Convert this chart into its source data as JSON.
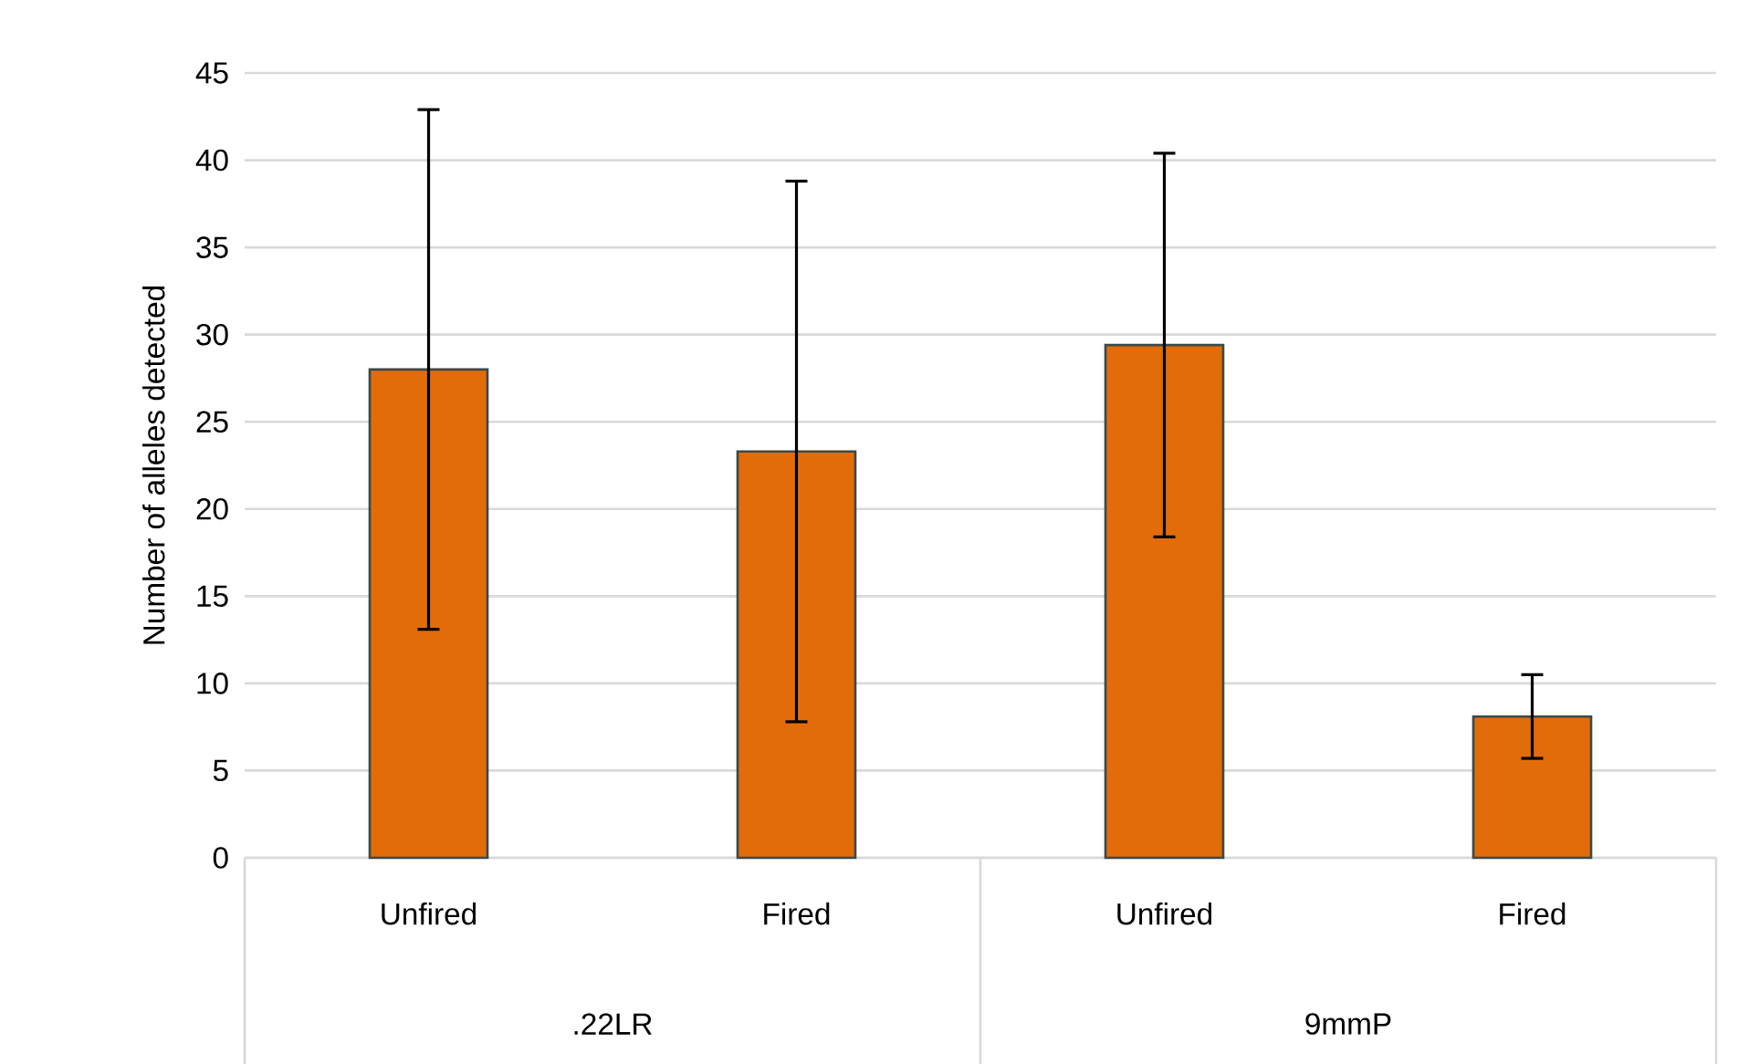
{
  "chart_data": {
    "type": "bar",
    "ylabel": "Number of alleles detected",
    "categories": [
      "Unfired",
      "Fired",
      "Unfired",
      "Fired"
    ],
    "annotations": [
      ".22LR",
      "9mmP"
    ],
    "values": [
      28,
      23.3,
      29.4,
      8.1
    ],
    "errors": [
      14.9,
      15.5,
      11,
      2.4
    ],
    "color": "#e36c0a",
    "ylim": [
      0,
      45
    ],
    "yticks": [
      0,
      5,
      10,
      15,
      20,
      25,
      30,
      35,
      40,
      45
    ],
    "grid": "y"
  }
}
